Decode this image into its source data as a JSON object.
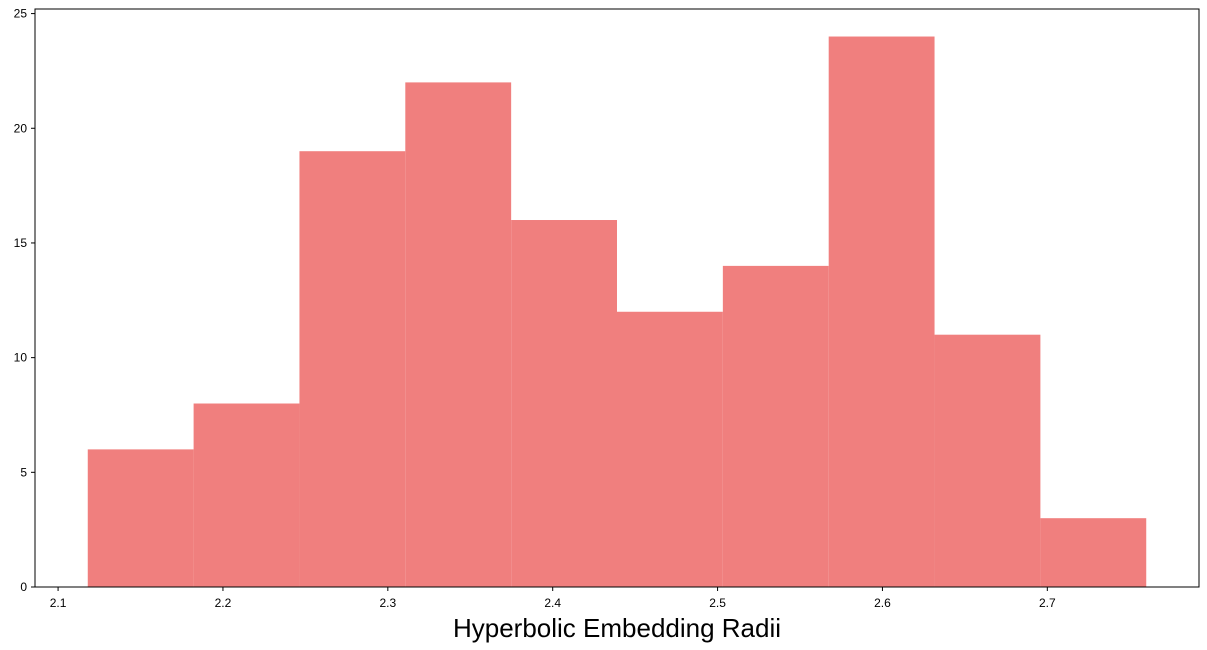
{
  "chart_data": {
    "type": "bar",
    "title": "",
    "xlabel": "Hyperbolic Embedding Radii",
    "ylabel": "",
    "bin_edges": [
      2.118,
      2.1822,
      2.2464,
      2.3106,
      2.3748,
      2.439,
      2.5032,
      2.5674,
      2.6316,
      2.6958,
      2.76
    ],
    "values": [
      6,
      8,
      19,
      22,
      16,
      12,
      14,
      24,
      11,
      3
    ],
    "xlim": [
      2.086,
      2.792
    ],
    "ylim": [
      0,
      25.2
    ],
    "xticks": [
      2.1,
      2.2,
      2.3,
      2.4,
      2.5,
      2.6,
      2.7
    ],
    "xtick_labels": [
      "2.1",
      "2.2",
      "2.3",
      "2.4",
      "2.5",
      "2.6",
      "2.7"
    ],
    "yticks": [
      0,
      5,
      10,
      15,
      20,
      25
    ],
    "ytick_labels": [
      "0",
      "5",
      "10",
      "15",
      "20",
      "25"
    ],
    "bar_color": "#f07f7e",
    "grid": false,
    "legend": "none"
  }
}
